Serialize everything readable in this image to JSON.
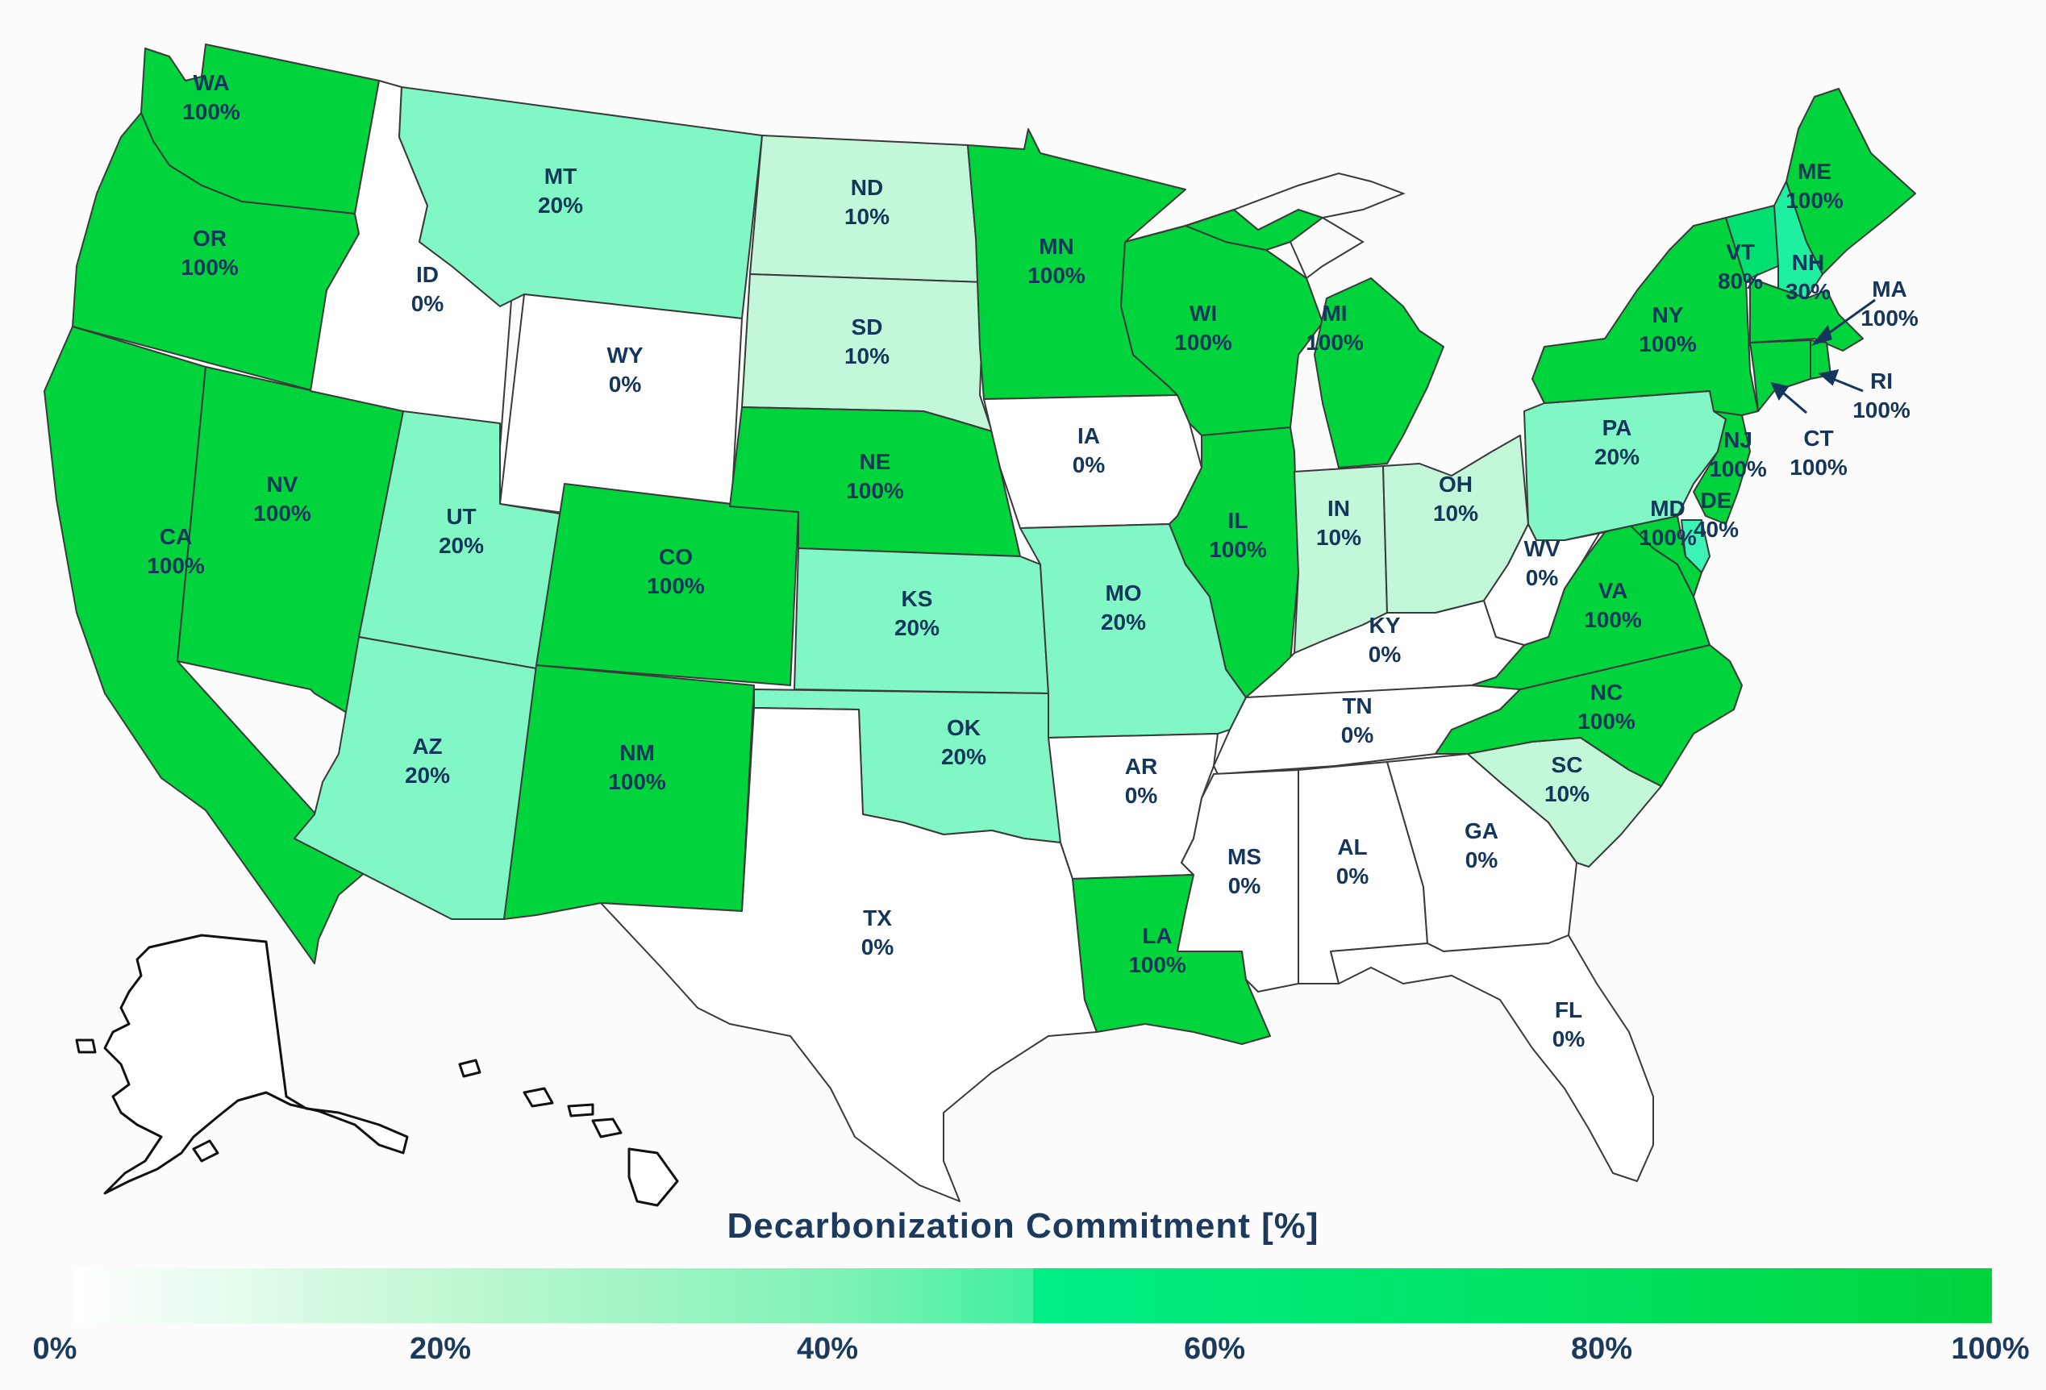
{
  "title": "Decarbonization Commitment [%]",
  "color_scale": {
    "stops": [
      "#ffffff",
      "#9ff5c2",
      "#5cf5b0",
      "#00f08a",
      "#00e070",
      "#00d43c"
    ],
    "ticks": [
      "0%",
      "20%",
      "40%",
      "60%",
      "80%",
      "100%"
    ]
  },
  "states": {
    "WA": {
      "name": "WA",
      "value": 100,
      "label": "100%"
    },
    "OR": {
      "name": "OR",
      "value": 100,
      "label": "100%"
    },
    "CA": {
      "name": "CA",
      "value": 100,
      "label": "100%"
    },
    "NV": {
      "name": "NV",
      "value": 100,
      "label": "100%"
    },
    "ID": {
      "name": "ID",
      "value": 0,
      "label": "0%"
    },
    "MT": {
      "name": "MT",
      "value": 20,
      "label": "20%"
    },
    "WY": {
      "name": "WY",
      "value": 0,
      "label": "0%"
    },
    "UT": {
      "name": "UT",
      "value": 20,
      "label": "20%"
    },
    "AZ": {
      "name": "AZ",
      "value": 20,
      "label": "20%"
    },
    "CO": {
      "name": "CO",
      "value": 100,
      "label": "100%"
    },
    "NM": {
      "name": "NM",
      "value": 100,
      "label": "100%"
    },
    "ND": {
      "name": "ND",
      "value": 10,
      "label": "10%"
    },
    "SD": {
      "name": "SD",
      "value": 10,
      "label": "10%"
    },
    "NE": {
      "name": "NE",
      "value": 100,
      "label": "100%"
    },
    "KS": {
      "name": "KS",
      "value": 20,
      "label": "20%"
    },
    "OK": {
      "name": "OK",
      "value": 20,
      "label": "20%"
    },
    "TX": {
      "name": "TX",
      "value": 0,
      "label": "0%"
    },
    "MN": {
      "name": "MN",
      "value": 100,
      "label": "100%"
    },
    "IA": {
      "name": "IA",
      "value": 0,
      "label": "0%"
    },
    "MO": {
      "name": "MO",
      "value": 20,
      "label": "20%"
    },
    "AR": {
      "name": "AR",
      "value": 0,
      "label": "0%"
    },
    "LA": {
      "name": "LA",
      "value": 100,
      "label": "100%"
    },
    "WI": {
      "name": "WI",
      "value": 100,
      "label": "100%"
    },
    "IL": {
      "name": "IL",
      "value": 100,
      "label": "100%"
    },
    "MI": {
      "name": "MI",
      "value": 100,
      "label": "100%"
    },
    "IN": {
      "name": "IN",
      "value": 10,
      "label": "10%"
    },
    "OH": {
      "name": "OH",
      "value": 10,
      "label": "10%"
    },
    "KY": {
      "name": "KY",
      "value": 0,
      "label": "0%"
    },
    "TN": {
      "name": "TN",
      "value": 0,
      "label": "0%"
    },
    "MS": {
      "name": "MS",
      "value": 0,
      "label": "0%"
    },
    "AL": {
      "name": "AL",
      "value": 0,
      "label": "0%"
    },
    "GA": {
      "name": "GA",
      "value": 0,
      "label": "0%"
    },
    "FL": {
      "name": "FL",
      "value": 0,
      "label": "0%"
    },
    "SC": {
      "name": "SC",
      "value": 10,
      "label": "10%"
    },
    "NC": {
      "name": "NC",
      "value": 100,
      "label": "100%"
    },
    "VA": {
      "name": "VA",
      "value": 100,
      "label": "100%"
    },
    "WV": {
      "name": "WV",
      "value": 0,
      "label": "0%"
    },
    "PA": {
      "name": "PA",
      "value": 20,
      "label": "20%"
    },
    "NY": {
      "name": "NY",
      "value": 100,
      "label": "100%"
    },
    "VT": {
      "name": "VT",
      "value": 80,
      "label": "80%"
    },
    "NH": {
      "name": "NH",
      "value": 30,
      "label": "30%"
    },
    "ME": {
      "name": "ME",
      "value": 100,
      "label": "100%"
    },
    "MA": {
      "name": "MA",
      "value": 100,
      "label": "100%"
    },
    "RI": {
      "name": "RI",
      "value": 100,
      "label": "100%"
    },
    "CT": {
      "name": "CT",
      "value": 100,
      "label": "100%"
    },
    "NJ": {
      "name": "NJ",
      "value": 100,
      "label": "100%"
    },
    "DE": {
      "name": "DE",
      "value": 40,
      "label": "40%"
    },
    "MD": {
      "name": "MD",
      "value": 100,
      "label": "100%"
    }
  }
}
